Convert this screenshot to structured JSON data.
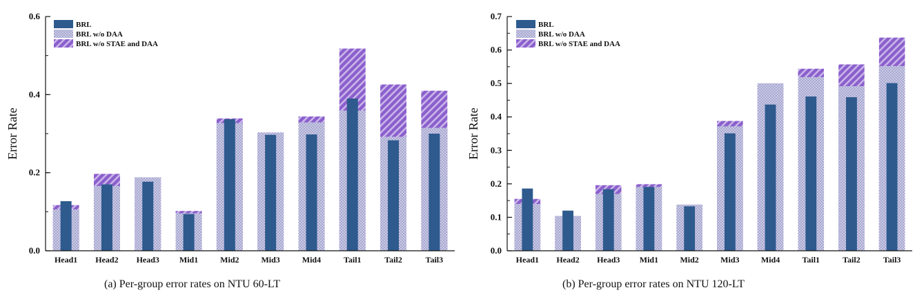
{
  "colors": {
    "brl": "#2e5a8e",
    "dots_bg": "#a8a8d2",
    "dots_fg": "#ffffff",
    "hatch_bg": "#8b5fcc",
    "hatch_fg": "#c9b6ea",
    "axis": "#111111"
  },
  "chart_data": [
    {
      "type": "bar",
      "caption": "(a) Per-group error rates on NTU 60-LT",
      "ylabel": "Error Rate",
      "ylim": [
        0,
        0.6
      ],
      "yticks": [
        0.0,
        0.2,
        0.4,
        0.6
      ],
      "ytick_labels": [
        "0.0",
        "0.2",
        "0.4",
        "0.6"
      ],
      "minor_ytick_step": 0.1,
      "legend_position": "top-left",
      "categories": [
        "Head1",
        "Head2",
        "Head3",
        "Mid1",
        "Mid2",
        "Mid3",
        "Mid4",
        "Tail1",
        "Tail2",
        "Tail3"
      ],
      "series": [
        {
          "name": "BRL",
          "values": [
            0.127,
            0.17,
            0.177,
            0.094,
            0.337,
            0.297,
            0.298,
            0.39,
            0.283,
            0.3
          ]
        },
        {
          "name": "BRL w/o DAA",
          "values": [
            0.106,
            0.166,
            0.188,
            0.096,
            0.327,
            0.303,
            0.329,
            0.359,
            0.292,
            0.315
          ]
        },
        {
          "name": "BRL w/o STAE and DAA",
          "values": [
            0.117,
            0.197,
            0.188,
            0.102,
            0.339,
            0.303,
            0.344,
            0.518,
            0.426,
            0.41
          ]
        }
      ]
    },
    {
      "type": "bar",
      "caption": "(b) Per-group error rates on NTU 120-LT",
      "ylabel": "Error Rate",
      "ylim": [
        0,
        0.7
      ],
      "yticks": [
        0.0,
        0.1,
        0.2,
        0.3,
        0.4,
        0.5,
        0.6,
        0.7
      ],
      "ytick_labels": [
        "0.0",
        "0.1",
        "0.2",
        "0.3",
        "0.4",
        "0.5",
        "0.6",
        "0.7"
      ],
      "minor_ytick_step": 0.05,
      "legend_position": "top-left",
      "categories": [
        "Head1",
        "Head2",
        "Head3",
        "Mid1",
        "Mid2",
        "Mid3",
        "Mid4",
        "Tail1",
        "Tail2",
        "Tail3"
      ],
      "series": [
        {
          "name": "BRL",
          "values": [
            0.186,
            0.12,
            0.184,
            0.191,
            0.133,
            0.351,
            0.437,
            0.461,
            0.459,
            0.501
          ]
        },
        {
          "name": "BRL w/o DAA",
          "values": [
            0.14,
            0.104,
            0.17,
            0.191,
            0.138,
            0.372,
            0.5,
            0.519,
            0.492,
            0.552
          ]
        },
        {
          "name": "BRL w/o STAE and DAA",
          "values": [
            0.155,
            0.104,
            0.196,
            0.199,
            0.138,
            0.388,
            0.5,
            0.544,
            0.557,
            0.637
          ]
        }
      ]
    }
  ]
}
